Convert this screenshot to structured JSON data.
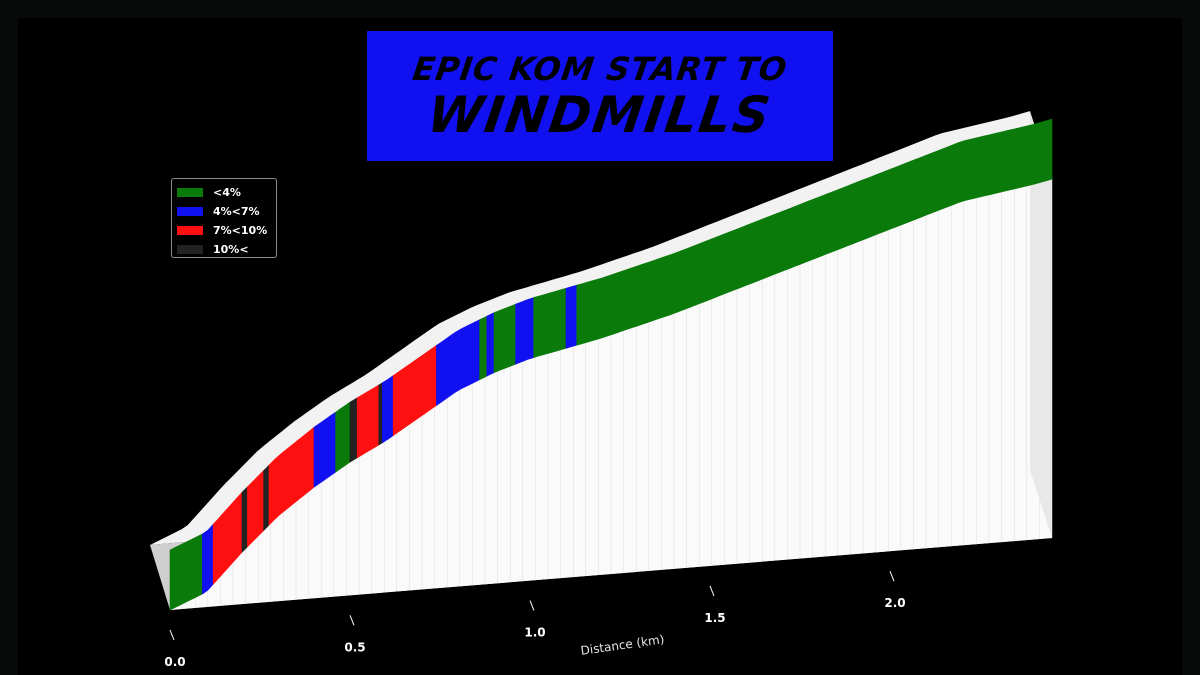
{
  "title": {
    "line1": "EPIC KOM START TO",
    "line2": "WINDMILLS"
  },
  "colors": {
    "background": "#000000",
    "title_box": "#1010f0",
    "walls": "#ffffff"
  },
  "chart_data": {
    "type": "area",
    "style": "3d-elevation-profile",
    "xlabel": "Distance (km)",
    "ylabel": "",
    "xlim": [
      0,
      2.45
    ],
    "x_ticks": [
      {
        "value": 0.0,
        "label": "0.0"
      },
      {
        "value": 0.5,
        "label": "0.5"
      },
      {
        "value": 1.0,
        "label": "1.0"
      },
      {
        "value": 1.5,
        "label": "1.5"
      },
      {
        "value": 2.0,
        "label": "2.0"
      }
    ],
    "elevation_relative": {
      "x": [
        0.0,
        0.1,
        0.2,
        0.3,
        0.4,
        0.5,
        0.6,
        0.7,
        0.8,
        0.9,
        1.0,
        1.2,
        1.4,
        1.6,
        1.8,
        2.0,
        2.2,
        2.4,
        2.45
      ],
      "y": [
        0.0,
        0.04,
        0.14,
        0.23,
        0.3,
        0.36,
        0.41,
        0.47,
        0.53,
        0.57,
        0.6,
        0.64,
        0.69,
        0.75,
        0.81,
        0.87,
        0.93,
        0.96,
        0.97
      ]
    },
    "gradient_segments": [
      {
        "x0": 0.0,
        "x1": 0.09,
        "class": 0
      },
      {
        "x0": 0.09,
        "x1": 0.12,
        "class": 1
      },
      {
        "x0": 0.12,
        "x1": 0.2,
        "class": 2
      },
      {
        "x0": 0.2,
        "x1": 0.215,
        "class": 3
      },
      {
        "x0": 0.215,
        "x1": 0.26,
        "class": 2
      },
      {
        "x0": 0.26,
        "x1": 0.275,
        "class": 3
      },
      {
        "x0": 0.275,
        "x1": 0.4,
        "class": 2
      },
      {
        "x0": 0.4,
        "x1": 0.46,
        "class": 1
      },
      {
        "x0": 0.46,
        "x1": 0.5,
        "class": 0
      },
      {
        "x0": 0.5,
        "x1": 0.52,
        "class": 3
      },
      {
        "x0": 0.52,
        "x1": 0.58,
        "class": 2
      },
      {
        "x0": 0.58,
        "x1": 0.59,
        "class": 3
      },
      {
        "x0": 0.59,
        "x1": 0.62,
        "class": 1
      },
      {
        "x0": 0.62,
        "x1": 0.74,
        "class": 2
      },
      {
        "x0": 0.74,
        "x1": 0.86,
        "class": 1
      },
      {
        "x0": 0.86,
        "x1": 0.88,
        "class": 0
      },
      {
        "x0": 0.88,
        "x1": 0.9,
        "class": 1
      },
      {
        "x0": 0.9,
        "x1": 0.96,
        "class": 0
      },
      {
        "x0": 0.96,
        "x1": 1.01,
        "class": 1
      },
      {
        "x0": 1.01,
        "x1": 1.1,
        "class": 0
      },
      {
        "x0": 1.1,
        "x1": 1.13,
        "class": 1
      },
      {
        "x0": 1.13,
        "x1": 2.45,
        "class": 0
      }
    ],
    "legend": {
      "placement": "upper-left",
      "entries": [
        {
          "label": "<4%",
          "color": "#0a7a0a"
        },
        {
          "label": "4%<7%",
          "color": "#1010f0"
        },
        {
          "label": "7%<10%",
          "color": "#ff1010"
        },
        {
          "label": "10%<",
          "color": "#222222"
        }
      ]
    }
  }
}
